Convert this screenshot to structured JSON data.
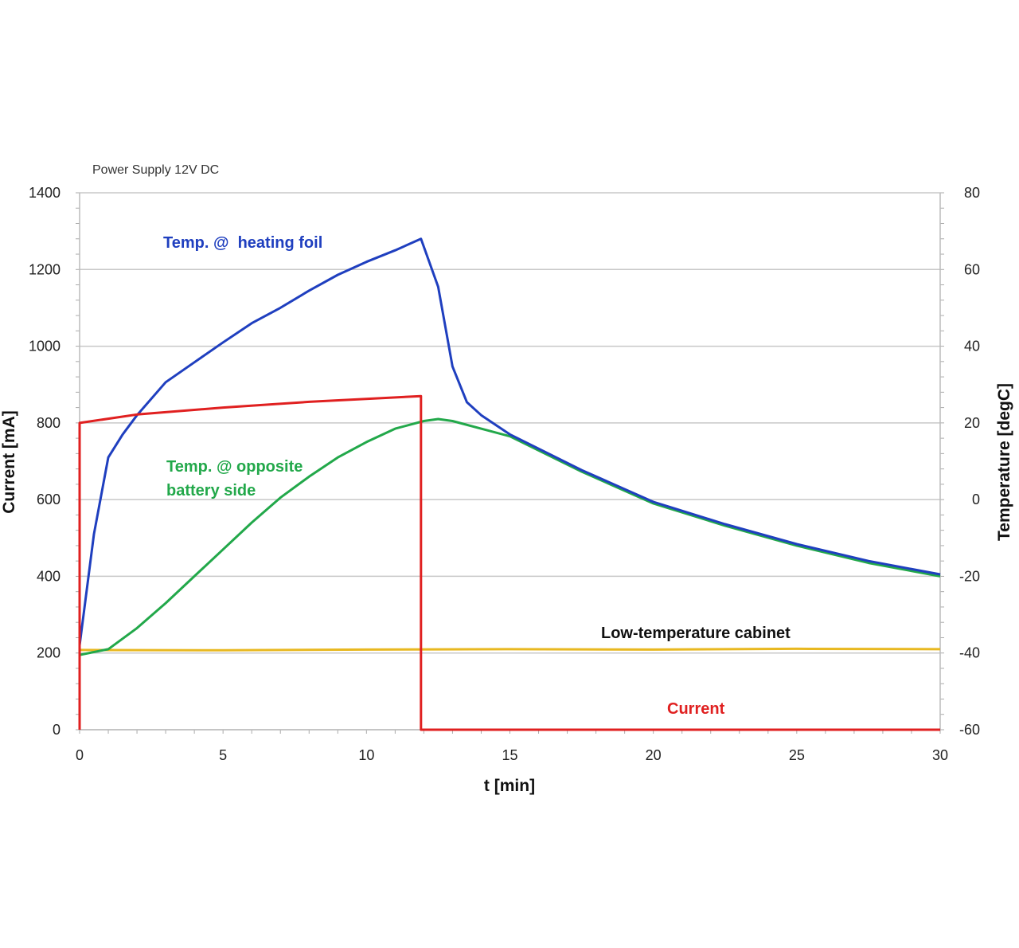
{
  "chart_data": {
    "type": "line",
    "title": "Power Supply 12V DC",
    "xlabel": "t [min]",
    "ylabel": "Current [mA]",
    "y2label": "Temperature [degC]",
    "xlim": [
      0,
      30
    ],
    "ylim": [
      0,
      1400
    ],
    "y2lim": [
      -60,
      80
    ],
    "xticks": [
      0,
      5,
      10,
      15,
      20,
      25,
      30
    ],
    "yticks": [
      0,
      200,
      400,
      600,
      800,
      1000,
      1200,
      1400
    ],
    "y2ticks": [
      -60,
      -40,
      -20,
      0,
      20,
      40,
      60,
      80
    ],
    "grid": true,
    "series": [
      {
        "name": "Current",
        "axis": "left",
        "color": "#e02020",
        "x": [
          0,
          0,
          2,
          5,
          8,
          11.9,
          11.9,
          30
        ],
        "y": [
          0,
          800,
          822,
          840,
          855,
          870,
          0,
          0
        ]
      },
      {
        "name": "Temp. @  heating foil",
        "axis": "right",
        "color": "#1f3fbf",
        "x": [
          0,
          0.5,
          1,
          1.5,
          2,
          3,
          4,
          5,
          6,
          7,
          8,
          9,
          10,
          11,
          11.9,
          12.5,
          13,
          13.5,
          14,
          15,
          17.5,
          20,
          22.5,
          25,
          27.5,
          30
        ],
        "y": [
          -38,
          -9,
          11,
          17,
          22,
          30.6,
          35.8,
          41,
          46,
          50,
          54.5,
          58.6,
          62,
          65,
          68,
          55.5,
          34.7,
          25.4,
          22,
          17,
          7.7,
          -0.6,
          -6.4,
          -11.6,
          -16,
          -19.5
        ]
      },
      {
        "name": "Temp. @ opposite battery side",
        "axis": "right",
        "color": "#22a84a",
        "x": [
          0,
          1,
          2,
          3,
          4,
          5,
          6,
          7,
          8,
          9,
          10,
          11,
          12,
          12.5,
          13,
          15,
          17.5,
          20,
          22.5,
          25,
          27.5,
          30
        ],
        "y": [
          -40.5,
          -39,
          -33.5,
          -27,
          -20,
          -13,
          -6,
          0.5,
          6,
          11,
          15,
          18.5,
          20.5,
          21,
          20.5,
          16.5,
          7.3,
          -1,
          -6.8,
          -12,
          -16.5,
          -20
        ]
      },
      {
        "name": "Low-temperature cabinet",
        "axis": "right",
        "color": "#e8b820",
        "x": [
          0,
          5,
          10,
          15,
          20,
          25,
          30
        ],
        "y": [
          -39.2,
          -39.3,
          -39.1,
          -39.0,
          -39.1,
          -38.9,
          -39.0
        ]
      }
    ],
    "annotations": {
      "current": "Current",
      "heating_foil": "Temp. @  heating foil",
      "opposite_line1": "Temp. @ opposite",
      "opposite_line2": "battery side",
      "cabinet": "Low-temperature cabinet"
    }
  }
}
